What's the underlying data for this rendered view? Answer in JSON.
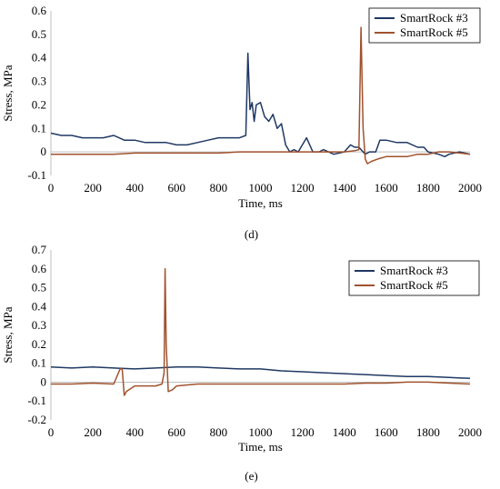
{
  "chart_data": [
    {
      "type": "line",
      "panel_label": "(d)",
      "xlabel": "Time, ms",
      "ylabel": "Stress, MPa",
      "xlim": [
        0,
        2000
      ],
      "ylim": [
        -0.1,
        0.6
      ],
      "x_ticks": [
        0,
        200,
        400,
        600,
        800,
        1000,
        1200,
        1400,
        1600,
        1800,
        2000
      ],
      "y_ticks": [
        "-0.1",
        "0",
        "0.1",
        "0.2",
        "0.3",
        "0.4",
        "0.5",
        "0.6"
      ],
      "y_tick_values": [
        -0.1,
        0,
        0.1,
        0.2,
        0.3,
        0.4,
        0.5,
        0.6
      ],
      "grid": "none",
      "legend_position": "top-right",
      "series": [
        {
          "name": "SmartRock #3",
          "color": "#1f3864",
          "x": [
            0,
            50,
            100,
            150,
            200,
            250,
            300,
            350,
            400,
            450,
            500,
            550,
            600,
            650,
            700,
            750,
            800,
            850,
            900,
            930,
            940,
            950,
            960,
            970,
            980,
            1000,
            1020,
            1040,
            1060,
            1080,
            1100,
            1120,
            1140,
            1160,
            1180,
            1200,
            1220,
            1250,
            1280,
            1300,
            1350,
            1400,
            1430,
            1450,
            1470,
            1490,
            1500,
            1520,
            1550,
            1570,
            1600,
            1650,
            1700,
            1750,
            1780,
            1800,
            1850,
            1880,
            1900,
            1950,
            2000
          ],
          "y": [
            0.08,
            0.07,
            0.07,
            0.06,
            0.06,
            0.06,
            0.07,
            0.05,
            0.05,
            0.04,
            0.04,
            0.04,
            0.03,
            0.03,
            0.04,
            0.05,
            0.06,
            0.06,
            0.06,
            0.07,
            0.42,
            0.18,
            0.21,
            0.13,
            0.2,
            0.21,
            0.15,
            0.13,
            0.16,
            0.1,
            0.12,
            0.03,
            0.0,
            0.01,
            0.0,
            0.03,
            0.06,
            0.0,
            0.0,
            0.01,
            -0.01,
            0.0,
            0.03,
            0.02,
            0.02,
            0.0,
            -0.01,
            0.0,
            0.0,
            0.05,
            0.05,
            0.04,
            0.04,
            0.02,
            0.02,
            0.0,
            -0.01,
            -0.02,
            -0.01,
            0.0,
            -0.01
          ]
        },
        {
          "name": "SmartRock #5",
          "color": "#a0522d",
          "x": [
            0,
            100,
            200,
            300,
            400,
            500,
            600,
            700,
            800,
            900,
            1000,
            1100,
            1200,
            1300,
            1400,
            1450,
            1470,
            1480,
            1490,
            1500,
            1510,
            1530,
            1560,
            1600,
            1650,
            1700,
            1750,
            1800,
            1850,
            1900,
            1950,
            2000
          ],
          "y": [
            -0.01,
            -0.01,
            -0.01,
            -0.01,
            -0.005,
            -0.005,
            -0.005,
            -0.005,
            -0.005,
            0.0,
            0.0,
            0.0,
            0.0,
            0.0,
            0.0,
            0.005,
            0.01,
            0.53,
            0.1,
            -0.03,
            -0.05,
            -0.04,
            -0.03,
            -0.02,
            -0.02,
            -0.02,
            -0.01,
            -0.01,
            0.0,
            0.0,
            -0.005,
            -0.01
          ]
        }
      ]
    },
    {
      "type": "line",
      "panel_label": "(e)",
      "xlabel": "Time, ms",
      "ylabel": "Stress, MPa",
      "xlim": [
        0,
        2000
      ],
      "ylim": [
        -0.2,
        0.7
      ],
      "x_ticks": [
        0,
        200,
        400,
        600,
        800,
        1000,
        1200,
        1400,
        1600,
        1800,
        2000
      ],
      "y_ticks": [
        "-0.2",
        "-0.1",
        "0",
        "0.1",
        "0.2",
        "0.3",
        "0.4",
        "0.5",
        "0.6",
        "0.7"
      ],
      "y_tick_values": [
        -0.2,
        -0.1,
        0,
        0.1,
        0.2,
        0.3,
        0.4,
        0.5,
        0.6,
        0.7
      ],
      "grid": "none",
      "legend_position": "top-right",
      "series": [
        {
          "name": "SmartRock #3",
          "color": "#1f3864",
          "x": [
            0,
            100,
            200,
            300,
            400,
            500,
            600,
            700,
            800,
            900,
            1000,
            1100,
            1200,
            1300,
            1400,
            1500,
            1600,
            1700,
            1800,
            1900,
            2000
          ],
          "y": [
            0.08,
            0.075,
            0.08,
            0.075,
            0.07,
            0.075,
            0.08,
            0.08,
            0.075,
            0.07,
            0.07,
            0.06,
            0.055,
            0.05,
            0.045,
            0.04,
            0.035,
            0.03,
            0.03,
            0.025,
            0.02
          ]
        },
        {
          "name": "SmartRock #5",
          "color": "#a0522d",
          "x": [
            0,
            100,
            200,
            300,
            330,
            340,
            350,
            360,
            400,
            450,
            500,
            530,
            540,
            545,
            550,
            560,
            580,
            600,
            700,
            800,
            900,
            1000,
            1100,
            1200,
            1300,
            1400,
            1500,
            1600,
            1700,
            1800,
            1900,
            2000
          ],
          "y": [
            -0.01,
            -0.01,
            -0.005,
            -0.01,
            0.07,
            0.07,
            -0.07,
            -0.05,
            -0.02,
            -0.02,
            -0.02,
            -0.01,
            0.05,
            0.6,
            0.2,
            -0.05,
            -0.04,
            -0.02,
            -0.01,
            -0.01,
            -0.01,
            -0.01,
            -0.01,
            -0.01,
            -0.01,
            -0.01,
            -0.005,
            -0.005,
            0.0,
            0.0,
            -0.005,
            -0.01
          ]
        }
      ]
    }
  ]
}
